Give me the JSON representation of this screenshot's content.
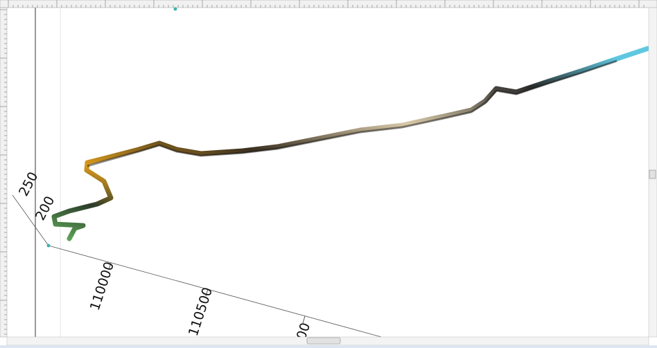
{
  "scene": {
    "depth_labels": [
      "250",
      "200"
    ],
    "easting_labels": [
      "110000",
      "110500",
      "00"
    ]
  }
}
